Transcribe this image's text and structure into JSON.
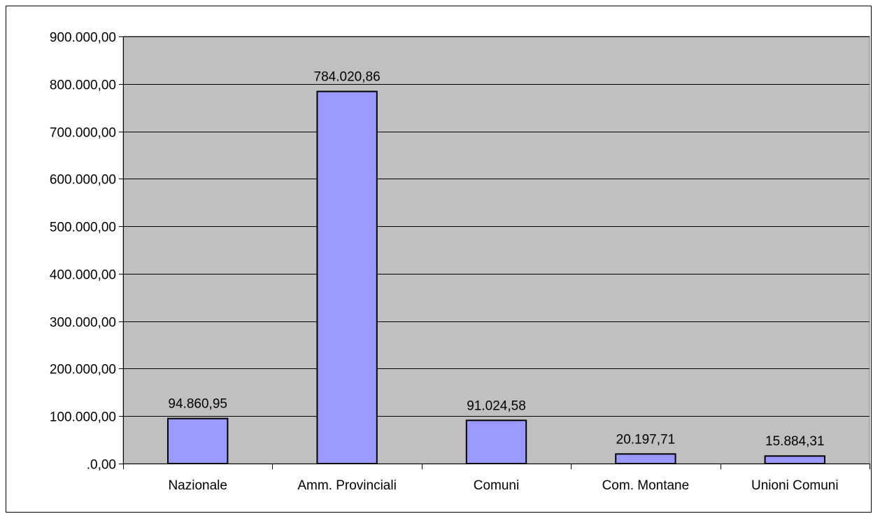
{
  "colors": {
    "plot_background": "#c0c0c0",
    "bar_fill": "#9999ff",
    "bar_stroke": "#000000",
    "gridline": "#000000",
    "page_background": "#ffffff"
  },
  "chart_data": {
    "type": "bar",
    "title": "",
    "xlabel": "",
    "ylabel": "",
    "categories": [
      "Nazionale",
      "Amm. Provinciali",
      "Comuni",
      "Com. Montane",
      "Unioni Comuni"
    ],
    "values": [
      94860.95,
      784020.86,
      91024.58,
      20197.71,
      15884.31
    ],
    "data_labels": [
      "94.860,95",
      "784.020,86",
      "91.024,58",
      "20.197,71",
      "15.884,31"
    ],
    "ylim": [
      0,
      900000
    ],
    "ytick_values": [
      0,
      100000,
      200000,
      300000,
      400000,
      500000,
      600000,
      700000,
      800000,
      900000
    ],
    "ytick_labels": [
      ".0,00",
      "100.000,00",
      "200.000,00",
      "300.000,00",
      "400.000,00",
      "500.000,00",
      "600.000,00",
      "700.000,00",
      "800.000,00",
      "900.000,00"
    ],
    "grid": true,
    "legend": "none"
  }
}
